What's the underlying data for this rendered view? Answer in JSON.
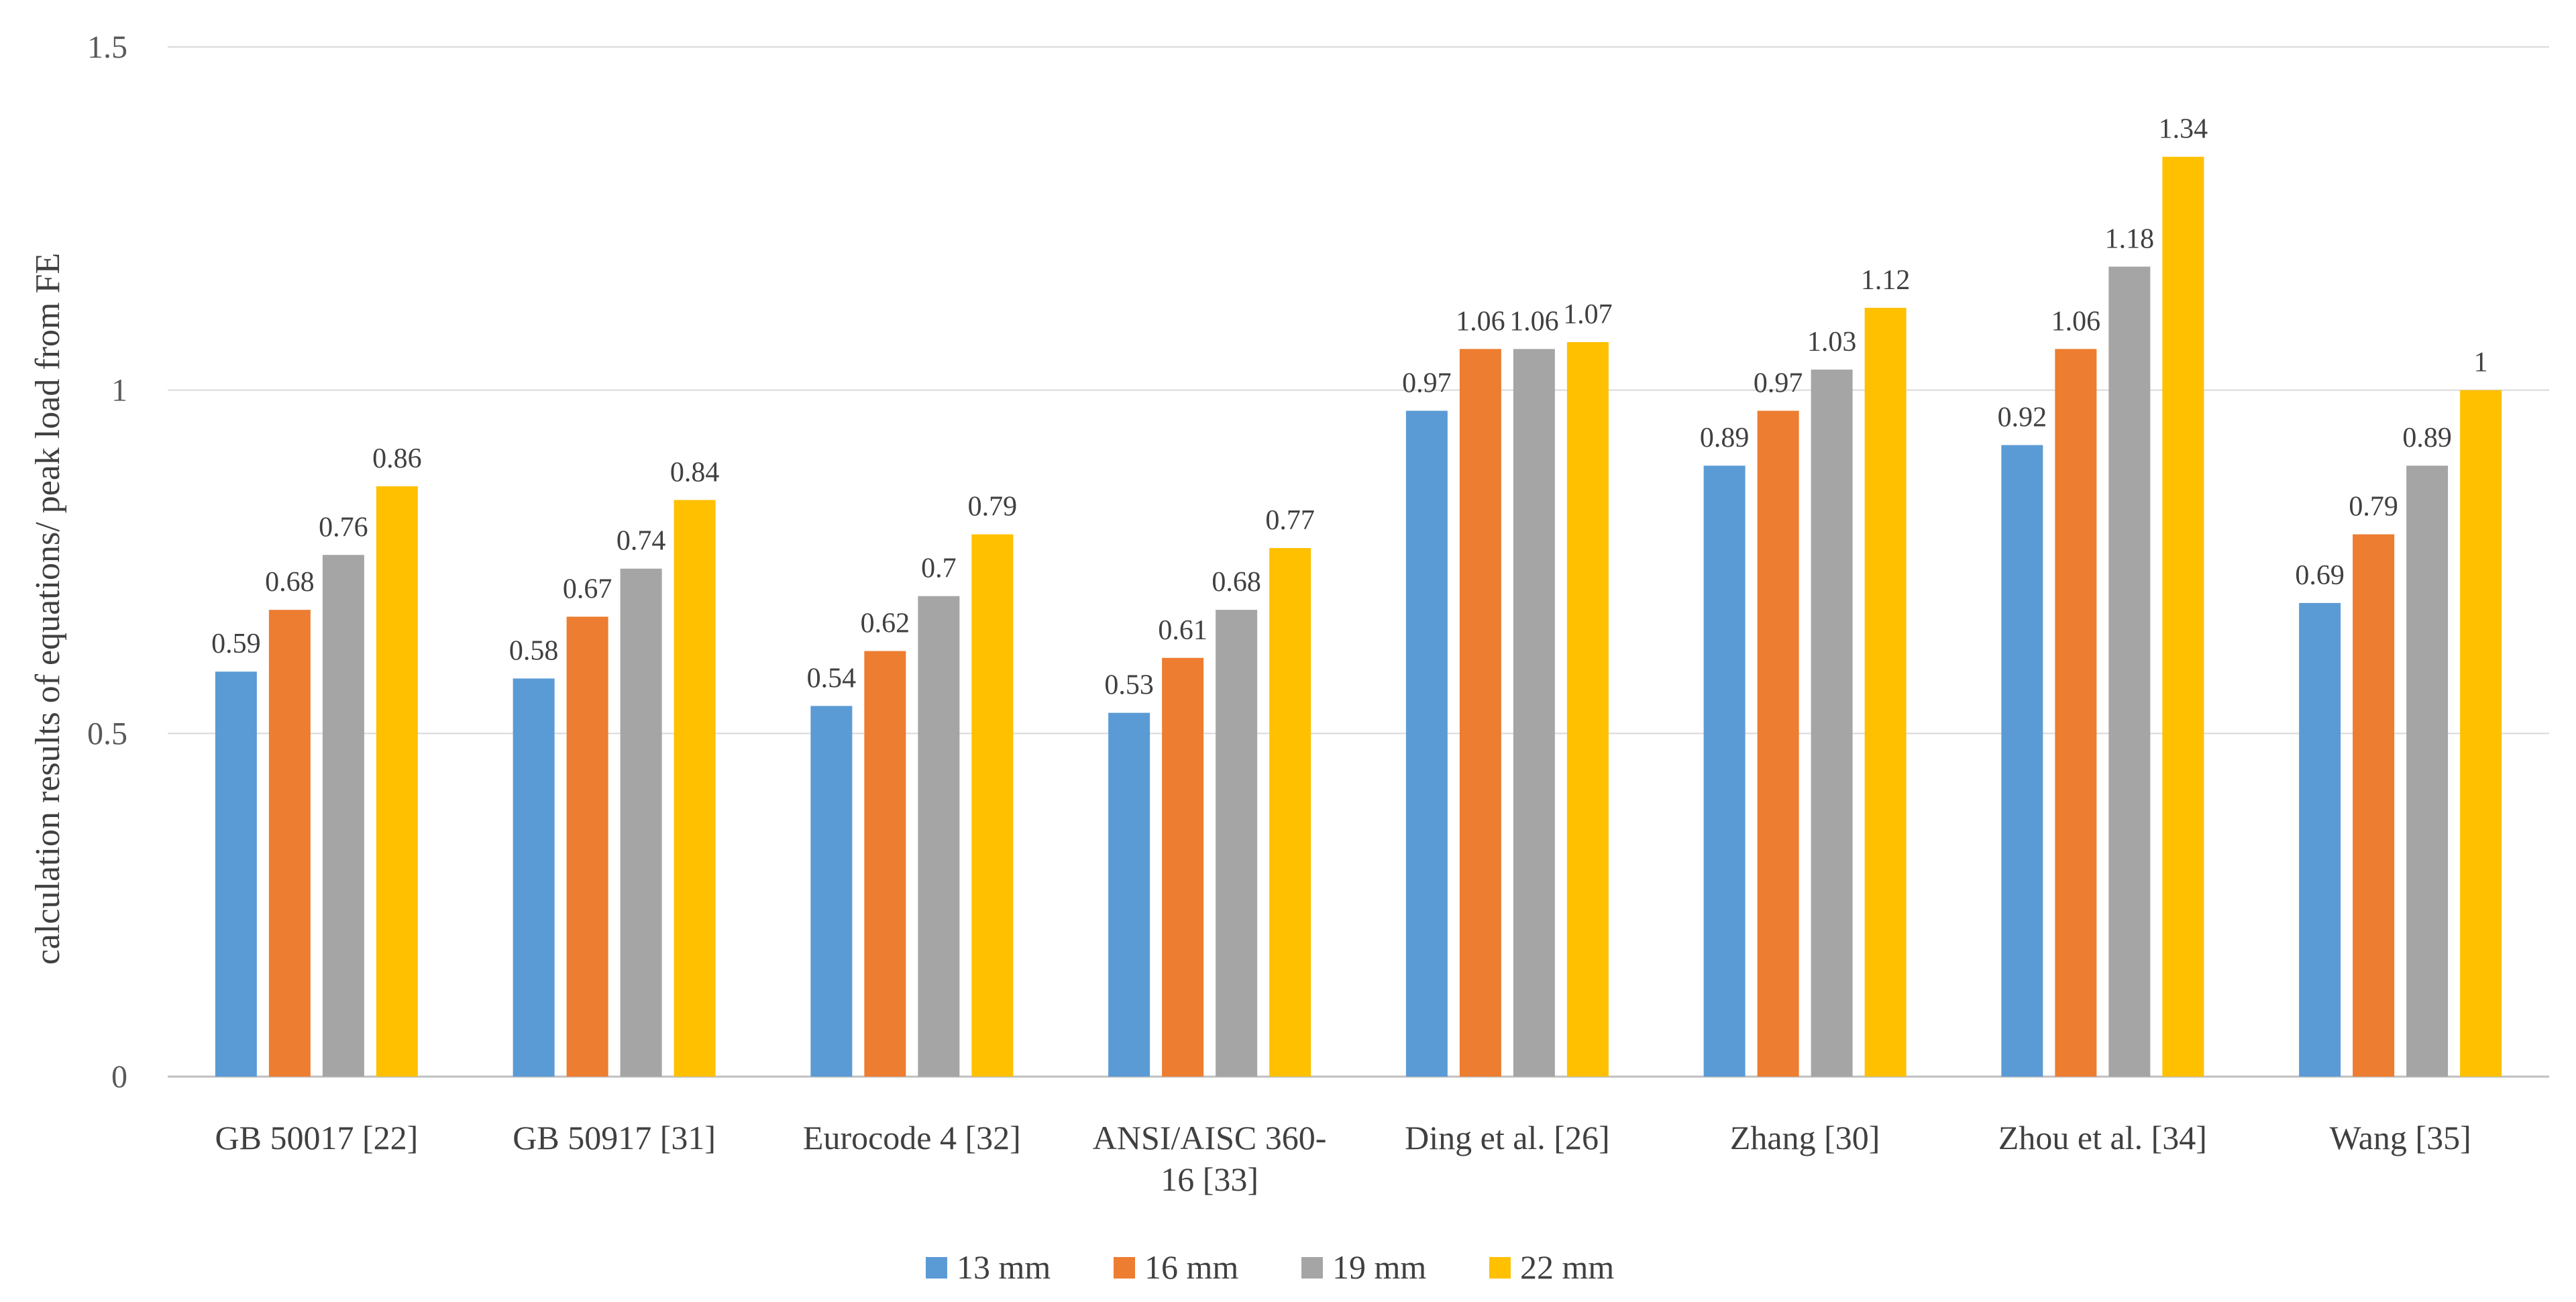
{
  "chart_data": {
    "type": "bar",
    "title": "",
    "xlabel": "",
    "ylabel": "calculation results of equations/ peak load from FE",
    "ylim": [
      0,
      1.5
    ],
    "yticks": [
      "0",
      "0.5",
      "1",
      "1.5"
    ],
    "grid": true,
    "legend_position": "bottom",
    "categories": [
      [
        "GB 50017 [22]"
      ],
      [
        "GB 50917 [31]"
      ],
      [
        "Eurocode 4 [32]"
      ],
      [
        "ANSI/AISC 360-",
        "16 [33]"
      ],
      [
        "Ding et al. [26]"
      ],
      [
        "Zhang [30]"
      ],
      [
        "Zhou et al. [34]"
      ],
      [
        "Wang [35]"
      ]
    ],
    "series": [
      {
        "name": "13 mm",
        "color": "#5B9BD5",
        "values": [
          0.59,
          0.58,
          0.54,
          0.53,
          0.97,
          0.89,
          0.92,
          0.69
        ],
        "labels": [
          "0.59",
          "0.58",
          "0.54",
          "0.53",
          "0.97",
          "0.89",
          "0.92",
          "0.69"
        ]
      },
      {
        "name": "16 mm",
        "color": "#ED7D31",
        "values": [
          0.68,
          0.67,
          0.62,
          0.61,
          1.06,
          0.97,
          1.06,
          0.79
        ],
        "labels": [
          "0.68",
          "0.67",
          "0.62",
          "0.61",
          "1.06",
          "0.97",
          "1.06",
          "0.79"
        ]
      },
      {
        "name": "19 mm",
        "color": "#A5A5A5",
        "values": [
          0.76,
          0.74,
          0.7,
          0.68,
          1.06,
          1.03,
          1.18,
          0.89
        ],
        "labels": [
          "0.76",
          "0.74",
          "0.7",
          "0.68",
          "1.06",
          "1.03",
          "1.18",
          "0.89"
        ]
      },
      {
        "name": "22 mm",
        "color": "#FFC000",
        "values": [
          0.86,
          0.84,
          0.79,
          0.77,
          1.07,
          1.12,
          1.34,
          1.0
        ],
        "labels": [
          "0.86",
          "0.84",
          "0.79",
          "0.77",
          "1.07",
          "1.12",
          "1.34",
          "1"
        ]
      }
    ]
  }
}
